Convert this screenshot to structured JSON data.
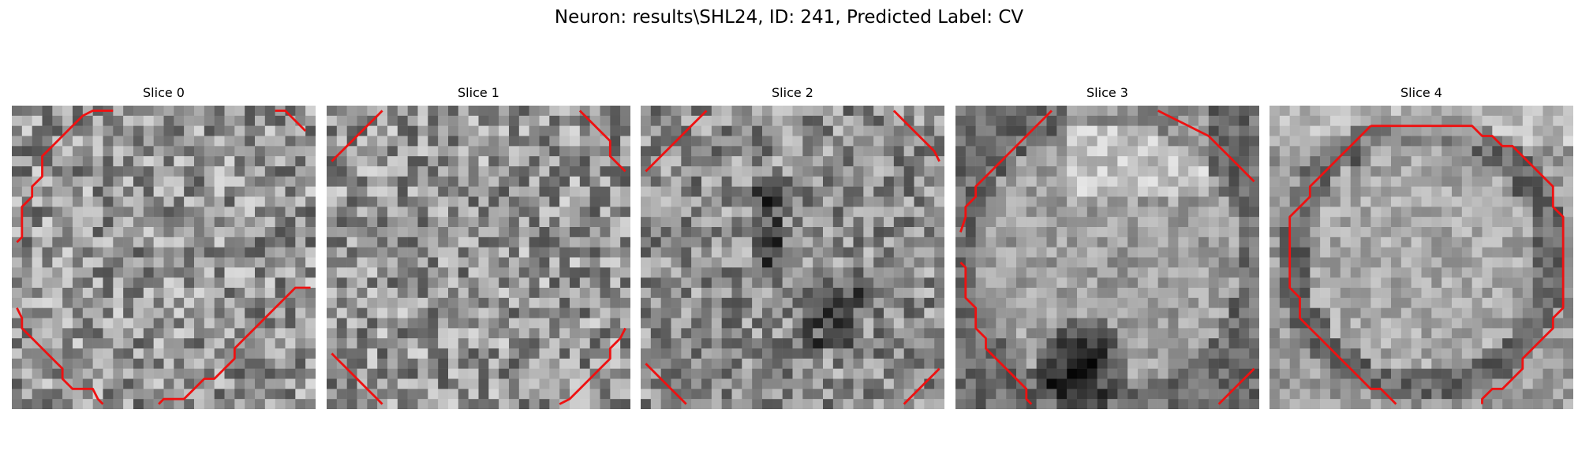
{
  "figure": {
    "suptitle": "Neuron: results\\SHL24, ID: 241, Predicted Label: CV",
    "contour_color": "#ee1111",
    "colormap": "gray",
    "panels": [
      {
        "title": "Slice 0",
        "image": "Slice 0 grayscale image with red contour arcs",
        "seed": 11,
        "style": "noise0",
        "ring": []
      },
      {
        "title": "Slice 1",
        "image": "Slice 1 grayscale image with red contour arcs",
        "seed": 23,
        "style": "noise1",
        "ring": []
      },
      {
        "title": "Slice 2",
        "image": "Slice 2 grayscale image with red contour arcs",
        "seed": 37,
        "style": "noise2",
        "ring": []
      },
      {
        "title": "Slice 3",
        "image": "Slice 3 grayscale image with red contour arcs",
        "seed": 51,
        "style": "blob3",
        "ring": []
      },
      {
        "title": "Slice 4",
        "image": "Slice 4 grayscale image with red contour octagon",
        "seed": 67,
        "style": "ring4",
        "ring": []
      }
    ]
  }
}
